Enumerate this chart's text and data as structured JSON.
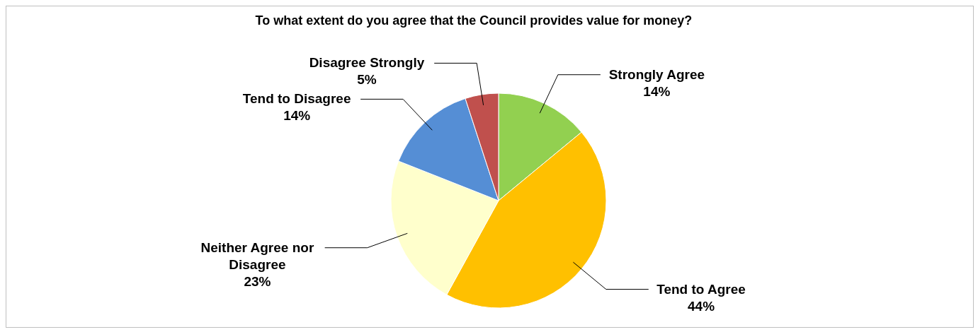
{
  "chart_data": {
    "type": "pie",
    "title": "To what extent do you agree that the Council provides value for money?",
    "categories": [
      "Strongly Agree",
      "Tend to Agree",
      "Neither Agree nor Disagree",
      "Tend to Disagree",
      "Disagree Strongly"
    ],
    "values": [
      14,
      44,
      23,
      14,
      5
    ],
    "colors": [
      "#92d050",
      "#ffc000",
      "#ffffcc",
      "#558ed5",
      "#c0504d"
    ],
    "value_labels": [
      "14%",
      "44%",
      "23%",
      "14%",
      "5%"
    ],
    "legend": false
  }
}
